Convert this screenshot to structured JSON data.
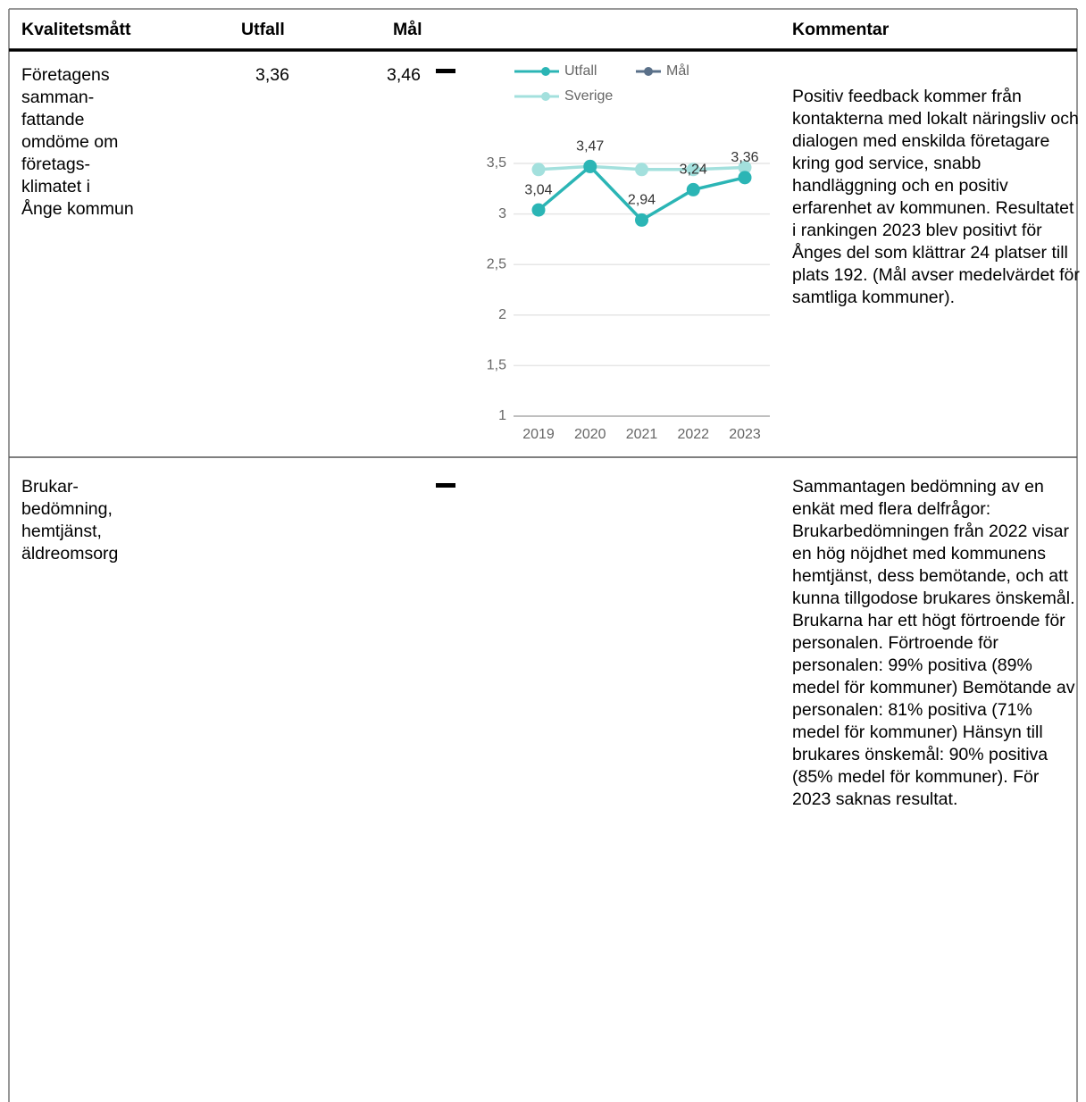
{
  "table": {
    "columns": [
      "Kvalitetsmått",
      "Utfall",
      "Mål",
      "Kommentar"
    ],
    "rows": [
      {
        "measure_lines": [
          "Företagens",
          "samman-",
          "fattande",
          "omdöme om",
          "företags-",
          "klimatet i",
          "Ånge kommun"
        ],
        "outcome": "3,36",
        "target": "3,46",
        "comment": "Positiv feedback kommer från kontakterna med lokalt näringsliv och dialogen med enskilda företagare kring god service, snabb handläggning och en positiv erfarenhet av kommunen. Resultatet i rankingen 2023 blev positivt för Ånges del som klättrar 24 platser till plats 192. (Mål avser medelvärdet för samtliga kommuner)."
      },
      {
        "measure_lines": [
          "Brukar-",
          "bedömning,",
          "hemtjänst,",
          "äldreomsorg"
        ],
        "comment": "Sammantagen bedömning av en enkät med flera delfrågor: Brukarbedömningen från 2022 visar en hög nöjdhet med kommunens hemtjänst, dess bemötande, och att kunna tillgodose brukares önskemål. Brukarna har ett högt förtroende för personalen. Förtroende för personalen: 99% positiva (89% medel för kommuner) Bemötande av personalen: 81% positiva (71% medel för kommuner) Hänsyn till brukares önskemål: 90% positiva (85% medel för kommuner). För 2023 saknas resultat."
      }
    ]
  },
  "chart_data": {
    "type": "line",
    "categories": [
      "2019",
      "2020",
      "2021",
      "2022",
      "2023"
    ],
    "series": [
      {
        "name": "Utfall",
        "color": "#2bb5b5",
        "values": [
          3.04,
          3.47,
          2.94,
          3.24,
          3.36
        ],
        "value_labels": [
          "3,04",
          "3,47",
          "2,94",
          "3,24",
          "3,36"
        ]
      },
      {
        "name": "Mål",
        "color": "#5a7089",
        "values": [
          null,
          null,
          null,
          null,
          null
        ]
      },
      {
        "name": "Sverige",
        "color": "#a3e0dd",
        "values": [
          3.44,
          3.47,
          3.44,
          3.44,
          3.46
        ]
      }
    ],
    "ylim": [
      1,
      3.5
    ],
    "yticks": [
      1,
      {
        "value": 1.5,
        "label": "1,5"
      },
      2,
      {
        "value": 2.5,
        "label": "2,5"
      },
      3,
      {
        "value": 3.5,
        "label": "3,5"
      }
    ],
    "grid": true
  }
}
